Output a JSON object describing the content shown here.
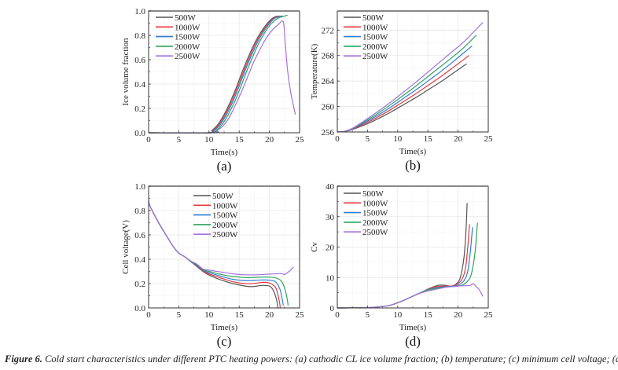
{
  "caption": {
    "label": "Figure 6.",
    "text": " Cold start characteristics under different PTC heating powers: (a) cathodic CL ice volume fraction; (b) temperature; (c) minimum cell voltage; (d) Cv"
  },
  "colors": {
    "500W": "#555555",
    "1000W": "#e8383d",
    "1500W": "#2f7ed8",
    "2000W": "#2da35a",
    "2500W": "#a56fe0"
  },
  "chart_data": [
    {
      "id": "a",
      "type": "line",
      "panel_label": "(a)",
      "title": "",
      "xlabel": "Time(s)",
      "ylabel": "Ice volume fraction",
      "xlim": [
        0,
        25
      ],
      "ylim": [
        0,
        1.0
      ],
      "xticks": [
        0,
        5,
        10,
        15,
        20,
        25
      ],
      "yticks": [
        0.0,
        0.2,
        0.4,
        0.6,
        0.8,
        1.0
      ],
      "ytick_labels": [
        "0.0",
        "0.2",
        "0.4",
        "0.6",
        "0.8",
        "1.0"
      ],
      "grid": true,
      "legend": "top-left",
      "series": [
        {
          "name": "500W",
          "x": [
            0,
            9.8,
            10.5,
            11.5,
            12.5,
            13.5,
            14.5,
            15.5,
            16.5,
            17.5,
            18.5,
            19.5,
            20.5,
            21.4
          ],
          "y": [
            0,
            0,
            0.02,
            0.07,
            0.15,
            0.25,
            0.37,
            0.5,
            0.62,
            0.73,
            0.82,
            0.89,
            0.94,
            0.96
          ]
        },
        {
          "name": "1000W",
          "x": [
            0,
            10.0,
            10.7,
            11.7,
            12.7,
            13.7,
            14.7,
            15.7,
            16.7,
            17.7,
            18.7,
            19.7,
            20.7,
            21.8
          ],
          "y": [
            0,
            0,
            0.02,
            0.07,
            0.15,
            0.25,
            0.37,
            0.5,
            0.62,
            0.73,
            0.82,
            0.89,
            0.94,
            0.96
          ]
        },
        {
          "name": "1500W",
          "x": [
            0,
            10.2,
            10.9,
            11.9,
            12.9,
            13.9,
            14.9,
            15.9,
            16.9,
            17.9,
            18.9,
            19.9,
            20.9,
            22.2
          ],
          "y": [
            0,
            0,
            0.02,
            0.07,
            0.15,
            0.25,
            0.37,
            0.5,
            0.62,
            0.73,
            0.82,
            0.89,
            0.94,
            0.96
          ]
        },
        {
          "name": "2000W",
          "x": [
            0,
            10.4,
            11.2,
            12.2,
            13.2,
            14.2,
            15.2,
            16.2,
            17.2,
            18.2,
            19.2,
            20.2,
            21.4,
            23.0
          ],
          "y": [
            0,
            0,
            0.02,
            0.07,
            0.15,
            0.25,
            0.37,
            0.5,
            0.62,
            0.73,
            0.82,
            0.89,
            0.94,
            0.965
          ]
        },
        {
          "name": "2500W",
          "x": [
            0,
            10.6,
            11.4,
            12.4,
            13.4,
            14.4,
            15.4,
            16.4,
            17.4,
            18.4,
            19.4,
            20.4,
            21.5,
            22.3,
            22.6,
            23.0,
            23.5,
            24.0,
            24.3
          ],
          "y": [
            0,
            0,
            0.02,
            0.06,
            0.13,
            0.23,
            0.34,
            0.46,
            0.58,
            0.68,
            0.77,
            0.84,
            0.89,
            0.91,
            0.75,
            0.52,
            0.34,
            0.22,
            0.15
          ]
        }
      ]
    },
    {
      "id": "b",
      "type": "line",
      "panel_label": "(b)",
      "title": "",
      "xlabel": "Time(s)",
      "ylabel": "Temperature(K)",
      "xlim": [
        0,
        25
      ],
      "ylim": [
        256,
        275
      ],
      "xticks": [
        0,
        5,
        10,
        15,
        20,
        25
      ],
      "yticks": [
        256,
        260,
        264,
        268,
        272
      ],
      "ytick_labels": [
        "256",
        "260",
        "264",
        "268",
        "272"
      ],
      "grid": true,
      "legend": "top-left",
      "series": [
        {
          "name": "500W",
          "x": [
            0,
            1,
            2,
            3,
            5,
            7,
            9,
            11,
            13,
            15,
            17,
            19,
            21.4
          ],
          "y": [
            256.0,
            256.05,
            256.25,
            256.55,
            257.3,
            258.2,
            259.2,
            260.3,
            261.4,
            262.6,
            263.8,
            265.1,
            266.7
          ]
        },
        {
          "name": "1000W",
          "x": [
            0,
            1,
            2,
            3,
            5,
            7,
            9,
            11,
            13,
            15,
            17,
            19,
            21.8
          ],
          "y": [
            256.0,
            256.05,
            256.27,
            256.62,
            257.5,
            258.5,
            259.6,
            260.8,
            262.0,
            263.3,
            264.6,
            266.0,
            268.0
          ]
        },
        {
          "name": "1500W",
          "x": [
            0,
            1,
            2,
            3,
            5,
            7,
            9,
            11,
            13,
            15,
            17,
            19,
            22.3
          ],
          "y": [
            256.0,
            256.06,
            256.3,
            256.7,
            257.7,
            258.8,
            260.0,
            261.3,
            262.6,
            264.0,
            265.4,
            266.9,
            269.5
          ]
        },
        {
          "name": "2000W",
          "x": [
            0,
            1,
            2,
            3,
            5,
            7,
            9,
            11,
            13,
            15,
            17,
            19,
            21,
            23.0
          ],
          "y": [
            256.0,
            256.06,
            256.33,
            256.78,
            257.9,
            259.1,
            260.4,
            261.8,
            263.2,
            264.7,
            266.2,
            267.7,
            269.3,
            271.2
          ]
        },
        {
          "name": "2500W",
          "x": [
            0,
            1,
            2,
            3,
            5,
            7,
            9,
            11,
            13,
            15,
            17,
            19,
            21,
            24.1
          ],
          "y": [
            256.0,
            256.07,
            256.36,
            256.85,
            258.1,
            259.4,
            260.8,
            262.3,
            263.8,
            265.4,
            267.0,
            268.6,
            270.2,
            273.2
          ]
        }
      ]
    },
    {
      "id": "c",
      "type": "line",
      "panel_label": "(c)",
      "title": "",
      "xlabel": "Time(s)",
      "ylabel": "Cell voltage(V)",
      "xlim": [
        0,
        25
      ],
      "ylim": [
        0,
        1.0
      ],
      "xticks": [
        0,
        5,
        10,
        15,
        20,
        25
      ],
      "yticks": [
        0.0,
        0.2,
        0.4,
        0.6,
        0.8,
        1.0
      ],
      "ytick_labels": [
        "0.0",
        "0.2",
        "0.4",
        "0.6",
        "0.8",
        "1.0"
      ],
      "grid": true,
      "legend": "top-center",
      "series": [
        {
          "name": "500W",
          "x": [
            0,
            0.2,
            1,
            2,
            3,
            4,
            5,
            6,
            7,
            8,
            9,
            10,
            12,
            14,
            16,
            17,
            18,
            19,
            20,
            20.6,
            21.0,
            21.3,
            21.4
          ],
          "y": [
            0.88,
            0.84,
            0.76,
            0.67,
            0.59,
            0.51,
            0.45,
            0.42,
            0.38,
            0.34,
            0.3,
            0.27,
            0.23,
            0.2,
            0.18,
            0.175,
            0.18,
            0.185,
            0.18,
            0.15,
            0.1,
            0.04,
            0.0
          ]
        },
        {
          "name": "1000W",
          "x": [
            0,
            0.2,
            1,
            2,
            3,
            4,
            5,
            6,
            7,
            8,
            9,
            10,
            12,
            14,
            16,
            17,
            18,
            19,
            20,
            21.0,
            21.4,
            21.7,
            21.8
          ],
          "y": [
            0.88,
            0.84,
            0.76,
            0.67,
            0.59,
            0.51,
            0.45,
            0.42,
            0.38,
            0.345,
            0.305,
            0.28,
            0.245,
            0.215,
            0.2,
            0.2,
            0.205,
            0.21,
            0.205,
            0.17,
            0.11,
            0.04,
            0.0
          ]
        },
        {
          "name": "1500W",
          "x": [
            0,
            0.2,
            1,
            2,
            3,
            4,
            5,
            6,
            7,
            8,
            9,
            10,
            12,
            14,
            16,
            17,
            18,
            19,
            20,
            21,
            21.7,
            22.1,
            22.3
          ],
          "y": [
            0.88,
            0.84,
            0.76,
            0.67,
            0.59,
            0.51,
            0.45,
            0.42,
            0.38,
            0.35,
            0.31,
            0.29,
            0.26,
            0.235,
            0.225,
            0.225,
            0.228,
            0.23,
            0.228,
            0.215,
            0.16,
            0.08,
            0.02
          ]
        },
        {
          "name": "2000W",
          "x": [
            0,
            0.2,
            1,
            2,
            3,
            4,
            5,
            6,
            7,
            8,
            9,
            10,
            12,
            14,
            16,
            17,
            18,
            19,
            20,
            21,
            22,
            22.6,
            23.0,
            23.1
          ],
          "y": [
            0.88,
            0.84,
            0.76,
            0.67,
            0.59,
            0.51,
            0.45,
            0.42,
            0.38,
            0.355,
            0.315,
            0.3,
            0.275,
            0.258,
            0.25,
            0.25,
            0.252,
            0.253,
            0.253,
            0.248,
            0.22,
            0.15,
            0.06,
            0.02
          ]
        },
        {
          "name": "2500W",
          "x": [
            0,
            0.2,
            1,
            2,
            3,
            4,
            5,
            6,
            7,
            8,
            9,
            10,
            12,
            14,
            16,
            18,
            20,
            21,
            22,
            22.5,
            23,
            23.5,
            24.0
          ],
          "y": [
            0.88,
            0.84,
            0.76,
            0.67,
            0.59,
            0.51,
            0.45,
            0.42,
            0.385,
            0.36,
            0.32,
            0.31,
            0.295,
            0.28,
            0.272,
            0.272,
            0.278,
            0.28,
            0.282,
            0.275,
            0.29,
            0.31,
            0.335
          ]
        }
      ]
    },
    {
      "id": "d",
      "type": "line",
      "panel_label": "(d)",
      "title": "",
      "xlabel": "Time(s)",
      "ylabel": "Cv",
      "xlim": [
        0,
        25
      ],
      "ylim": [
        0,
        40
      ],
      "xticks": [
        0,
        5,
        10,
        15,
        20,
        25
      ],
      "yticks": [
        0,
        10,
        20,
        30,
        40
      ],
      "ytick_labels": [
        "0",
        "10",
        "20",
        "30",
        "40"
      ],
      "grid": true,
      "legend": "top-left",
      "series": [
        {
          "name": "500W",
          "x": [
            0,
            4,
            6,
            8,
            9,
            10,
            11,
            12,
            13,
            14,
            15,
            16,
            17,
            18,
            19,
            20,
            20.5,
            21.0,
            21.3,
            21.5
          ],
          "y": [
            0,
            0.05,
            0.2,
            0.6,
            1.0,
            1.7,
            2.5,
            3.4,
            4.3,
            5.2,
            6.2,
            7.0,
            7.5,
            7.4,
            7.2,
            8.5,
            11,
            17,
            25,
            34.5
          ]
        },
        {
          "name": "1000W",
          "x": [
            0,
            4,
            6,
            8,
            9,
            10,
            11,
            12,
            13,
            14,
            15,
            16,
            17,
            18,
            19,
            20,
            20.8,
            21.3,
            21.6,
            21.9
          ],
          "y": [
            0,
            0.05,
            0.2,
            0.6,
            1.0,
            1.7,
            2.5,
            3.4,
            4.3,
            5.2,
            6.1,
            6.8,
            7.1,
            7.2,
            7.2,
            8.0,
            10,
            14,
            20,
            27.5
          ]
        },
        {
          "name": "1500W",
          "x": [
            0,
            4,
            6,
            8,
            9,
            10,
            11,
            12,
            13,
            14,
            15,
            16,
            17,
            18,
            19,
            20,
            21,
            21.6,
            22.0,
            22.4
          ],
          "y": [
            0,
            0.05,
            0.2,
            0.6,
            1.0,
            1.7,
            2.5,
            3.4,
            4.3,
            5.2,
            6.0,
            6.5,
            6.8,
            7.0,
            7.1,
            7.5,
            9.0,
            12,
            18,
            26.5
          ]
        },
        {
          "name": "2000W",
          "x": [
            0,
            4,
            6,
            8,
            9,
            10,
            11,
            12,
            13,
            14,
            15,
            16,
            17,
            18,
            19,
            20,
            21,
            22,
            22.5,
            22.9,
            23.2
          ],
          "y": [
            0,
            0.05,
            0.2,
            0.6,
            1.0,
            1.7,
            2.5,
            3.4,
            4.3,
            5.2,
            5.9,
            6.3,
            6.6,
            6.9,
            7.0,
            7.2,
            7.8,
            10,
            14,
            20,
            28
          ]
        },
        {
          "name": "2500W",
          "x": [
            0,
            4,
            6,
            8,
            9,
            10,
            11,
            12,
            13,
            14,
            15,
            16,
            17,
            18,
            19,
            20,
            21,
            22,
            22.5,
            23,
            23.5,
            24.1
          ],
          "y": [
            0,
            0.05,
            0.2,
            0.6,
            1.0,
            1.7,
            2.5,
            3.4,
            4.3,
            5.0,
            5.6,
            6.0,
            6.4,
            6.8,
            7.0,
            7.2,
            7.3,
            7.4,
            8.0,
            7.0,
            6.0,
            3.8
          ]
        }
      ]
    }
  ]
}
